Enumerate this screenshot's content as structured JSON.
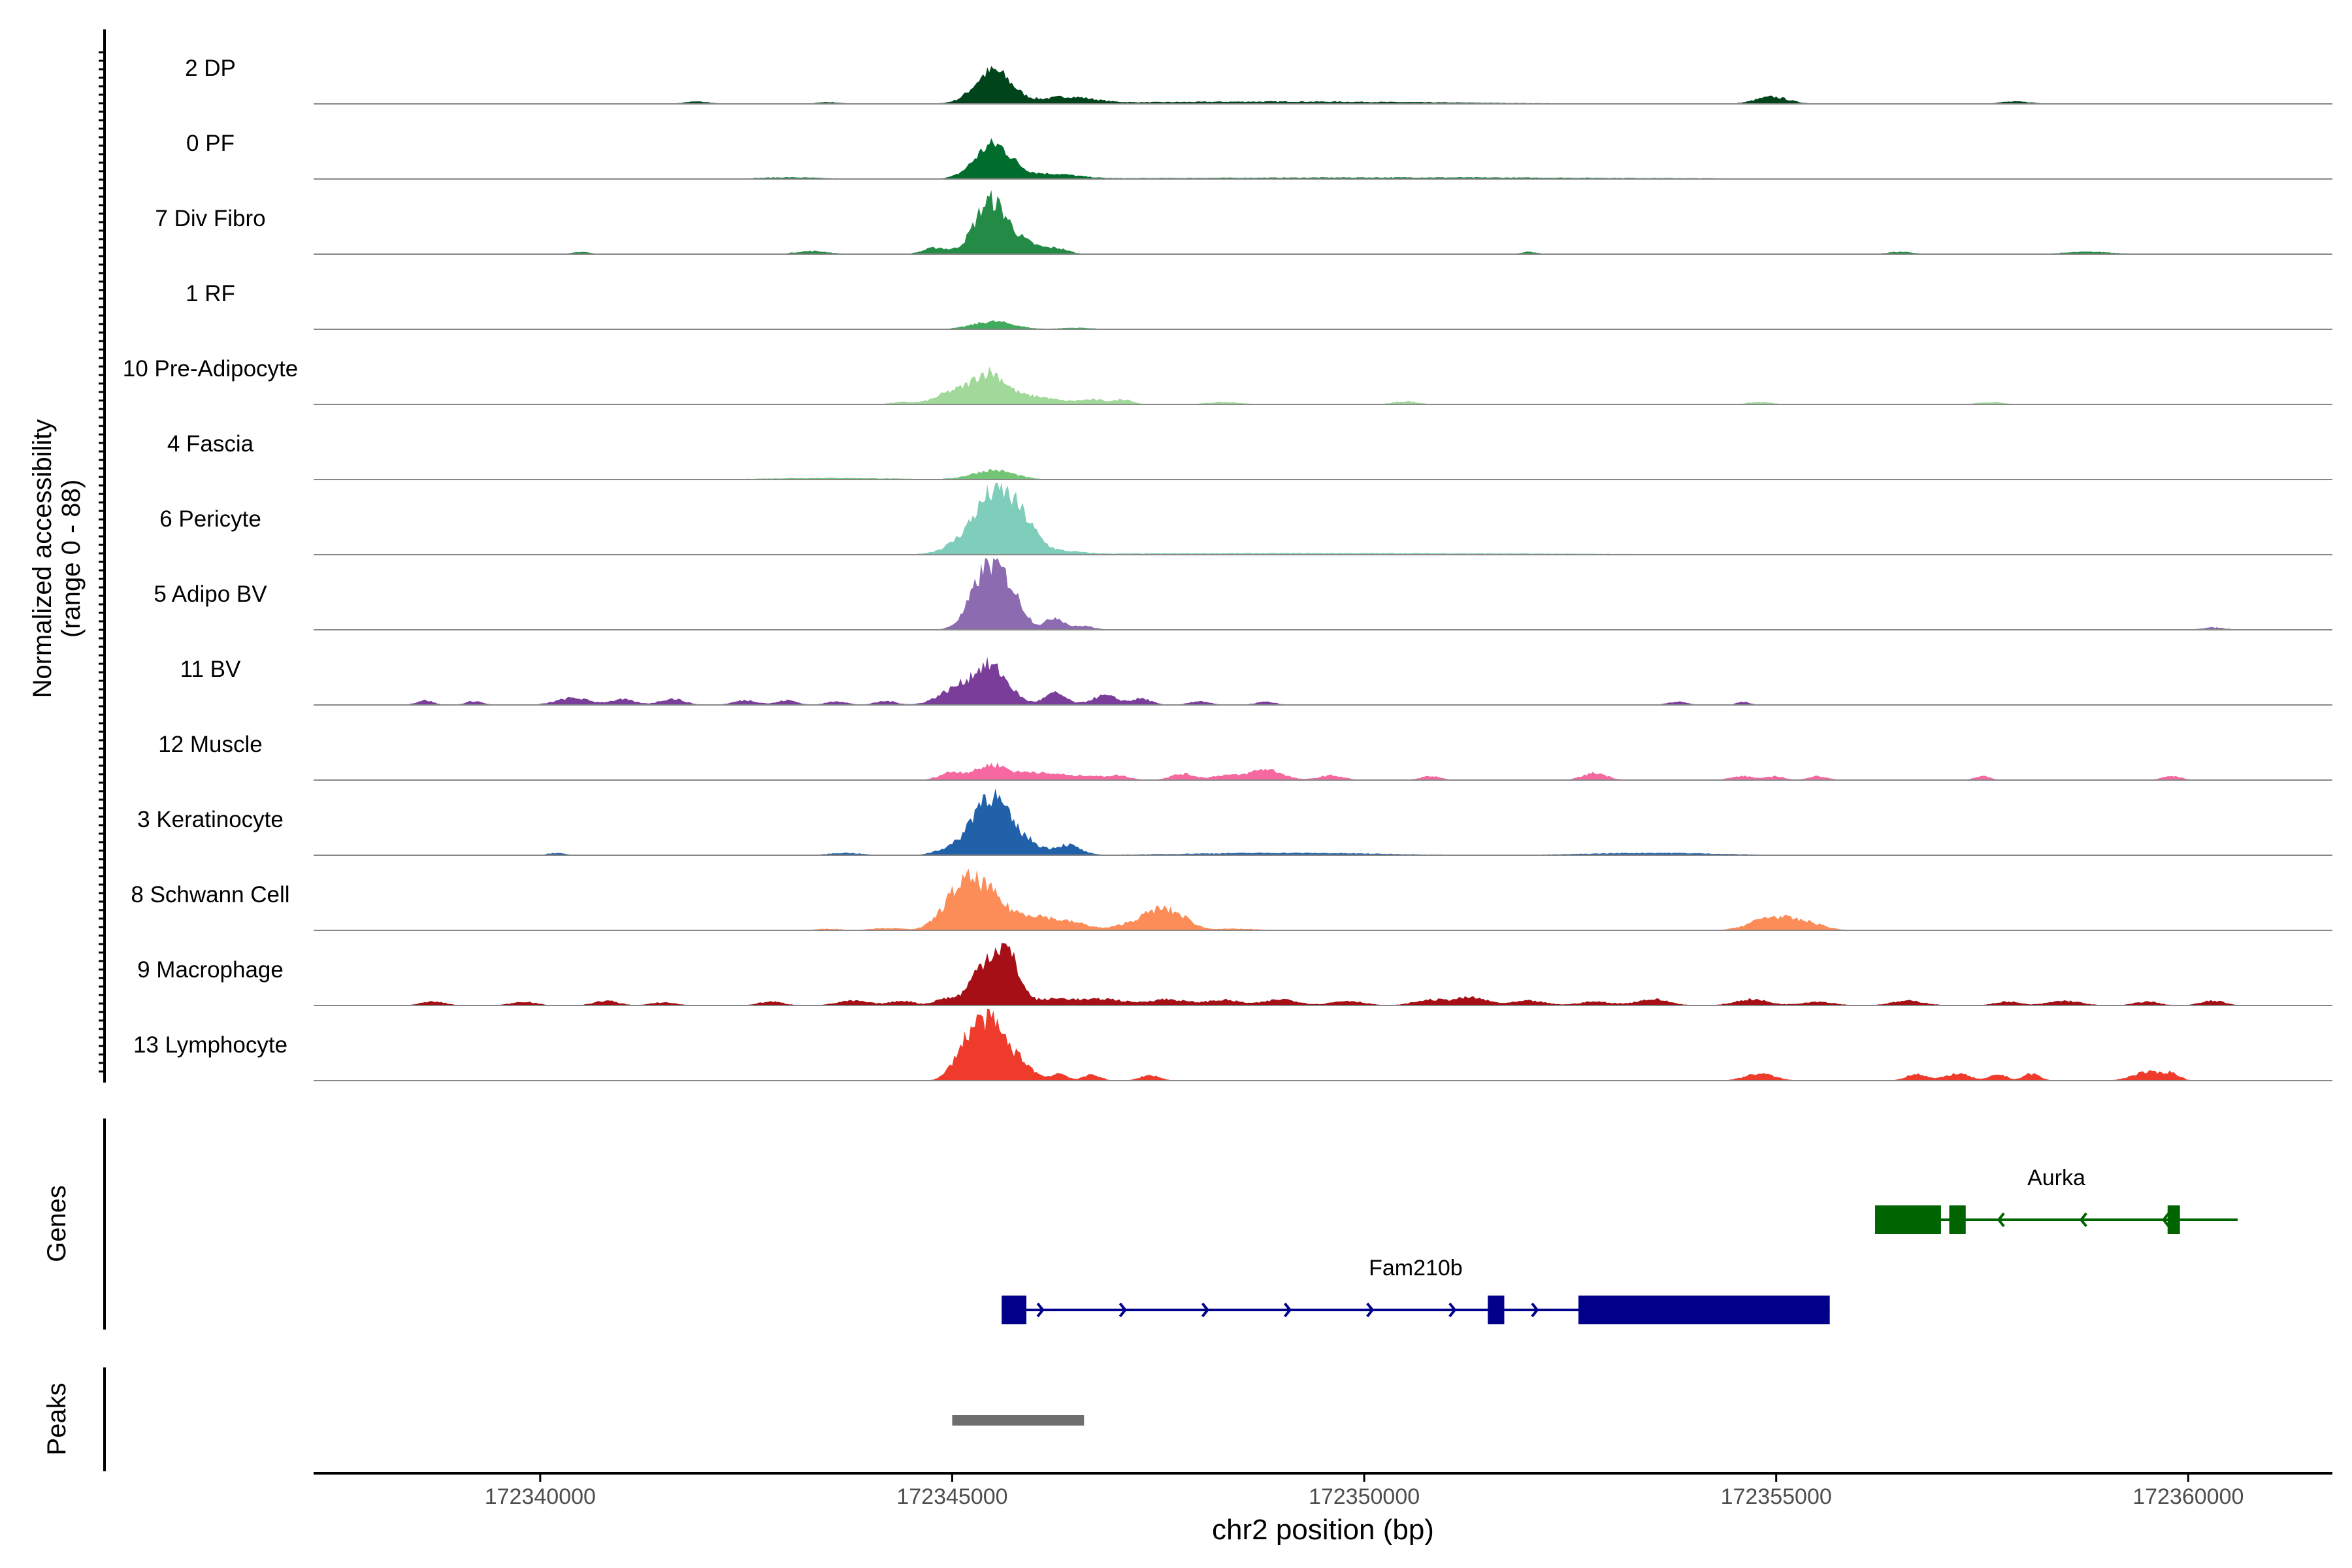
{
  "chart_data": {
    "type": "area",
    "title": "",
    "ylabel_line1": "Normalized accessibility",
    "ylabel_line2": "(range 0 - 88)",
    "y_range": [
      0,
      88
    ],
    "xlabel": "chr2 position (bp)",
    "xlim": [
      172337250,
      172361750
    ],
    "x_ticks": [
      172340000,
      172345000,
      172350000,
      172355000,
      172360000
    ],
    "x_tick_labels": [
      "172340000",
      "172345000",
      "172350000",
      "172355000",
      "172360000"
    ],
    "tracks": [
      {
        "name": "2 DP",
        "color": "#00441b",
        "peaks": [
          [
            172345500,
            42,
            220
          ],
          [
            172346400,
            8,
            300
          ],
          [
            172349000,
            3,
            2000
          ],
          [
            172354950,
            9,
            200
          ],
          [
            172341900,
            3,
            150
          ],
          [
            172357900,
            3,
            200
          ],
          [
            172343500,
            2,
            150
          ]
        ]
      },
      {
        "name": "0 PF",
        "color": "#006d2c",
        "peaks": [
          [
            172345500,
            44,
            220
          ],
          [
            172346200,
            6,
            300
          ],
          [
            172343000,
            2,
            400
          ],
          [
            172350500,
            2,
            3000
          ]
        ]
      },
      {
        "name": "7 Div Fibro",
        "color": "#238b45",
        "peaks": [
          [
            172345450,
            55,
            180
          ],
          [
            172345700,
            20,
            300
          ],
          [
            172344800,
            8,
            150
          ],
          [
            172346300,
            5,
            120
          ],
          [
            172343300,
            4,
            200
          ],
          [
            172352000,
            3,
            100
          ],
          [
            172340500,
            3,
            100
          ],
          [
            172356500,
            3,
            150
          ],
          [
            172358800,
            3,
            300
          ]
        ]
      },
      {
        "name": "1 RF",
        "color": "#41ab5d",
        "peaks": [
          [
            172345500,
            10,
            250
          ],
          [
            172346500,
            2,
            200
          ]
        ]
      },
      {
        "name": "10 Pre-Adipocyte",
        "color": "#a1d99b",
        "peaks": [
          [
            172345450,
            40,
            200
          ],
          [
            172345000,
            15,
            200
          ],
          [
            172346000,
            10,
            250
          ],
          [
            172346700,
            6,
            200
          ],
          [
            172347100,
            6,
            100
          ],
          [
            172348300,
            3,
            200
          ],
          [
            172350500,
            4,
            150
          ],
          [
            172354800,
            3,
            150
          ],
          [
            172357600,
            3,
            150
          ],
          [
            172344400,
            3,
            150
          ]
        ]
      },
      {
        "name": "4 Fascia",
        "color": "#74c476",
        "peaks": [
          [
            172345500,
            12,
            250
          ],
          [
            172343500,
            2,
            800
          ]
        ]
      },
      {
        "name": "6 Pericyte",
        "color": "#7fcdbb",
        "peaks": [
          [
            172345500,
            74,
            240
          ],
          [
            172345850,
            30,
            200
          ],
          [
            172345050,
            8,
            200
          ],
          [
            172346400,
            3,
            200
          ],
          [
            172349500,
            2,
            3000
          ]
        ]
      },
      {
        "name": "5 Adipo BV",
        "color": "#8c6bb1",
        "peaks": [
          [
            172345450,
            82,
            200
          ],
          [
            172345750,
            25,
            150
          ],
          [
            172346250,
            16,
            110
          ],
          [
            172346600,
            5,
            120
          ],
          [
            172360300,
            3,
            150
          ]
        ]
      },
      {
        "name": "11 BV",
        "color": "#7a3d9a",
        "peaks": [
          [
            172345450,
            50,
            220
          ],
          [
            172345000,
            16,
            200
          ],
          [
            172346250,
            15,
            130
          ],
          [
            172346850,
            12,
            160
          ],
          [
            172347300,
            8,
            120
          ],
          [
            172340400,
            9,
            200
          ],
          [
            172341000,
            7,
            150
          ],
          [
            172341600,
            8,
            150
          ],
          [
            172342500,
            6,
            150
          ],
          [
            172338600,
            6,
            100
          ],
          [
            172339200,
            5,
            100
          ],
          [
            172343000,
            6,
            120
          ],
          [
            172343600,
            5,
            120
          ],
          [
            172344200,
            5,
            130
          ],
          [
            172348000,
            5,
            120
          ],
          [
            172348800,
            4,
            120
          ],
          [
            172353800,
            4,
            120
          ],
          [
            172354600,
            4,
            80
          ]
        ]
      },
      {
        "name": "12 Muscle",
        "color": "#f768a1",
        "peaks": [
          [
            172345500,
            20,
            200
          ],
          [
            172345000,
            10,
            150
          ],
          [
            172346000,
            10,
            150
          ],
          [
            172346600,
            6,
            150
          ],
          [
            172347000,
            6,
            150
          ],
          [
            172347800,
            8,
            150
          ],
          [
            172348300,
            6,
            150
          ],
          [
            172348800,
            14,
            200
          ],
          [
            172349600,
            6,
            150
          ],
          [
            172350800,
            5,
            120
          ],
          [
            172352800,
            9,
            150
          ],
          [
            172354600,
            5,
            150
          ],
          [
            172355000,
            5,
            100
          ],
          [
            172355500,
            5,
            120
          ],
          [
            172357500,
            5,
            100
          ],
          [
            172359800,
            5,
            120
          ],
          [
            172346300,
            6,
            100
          ]
        ]
      },
      {
        "name": "3 Keratinocyte",
        "color": "#2161aa",
        "peaks": [
          [
            172345450,
            78,
            220
          ],
          [
            172345900,
            15,
            180
          ],
          [
            172346400,
            13,
            150
          ],
          [
            172344900,
            6,
            150
          ],
          [
            172340200,
            3,
            100
          ],
          [
            172343700,
            3,
            200
          ],
          [
            172349000,
            3,
            1200
          ],
          [
            172353500,
            3,
            800
          ]
        ]
      },
      {
        "name": "8 Schwann Cell",
        "color": "#fc8d59",
        "peaks": [
          [
            172345350,
            52,
            250
          ],
          [
            172345050,
            30,
            200
          ],
          [
            172346000,
            18,
            250
          ],
          [
            172346500,
            8,
            200
          ],
          [
            172347100,
            6,
            150
          ],
          [
            172347500,
            26,
            200
          ],
          [
            172347800,
            10,
            150
          ],
          [
            172354950,
            17,
            250
          ],
          [
            172355400,
            8,
            200
          ],
          [
            172344200,
            3,
            200
          ],
          [
            172343500,
            2,
            150
          ],
          [
            172348400,
            2,
            300
          ]
        ]
      },
      {
        "name": "9 Macrophage",
        "color": "#a50f15",
        "peaks": [
          [
            172345450,
            60,
            200
          ],
          [
            172345700,
            40,
            130
          ],
          [
            172346300,
            9,
            300
          ],
          [
            172346900,
            7,
            200
          ],
          [
            172347600,
            8,
            250
          ],
          [
            172348300,
            7,
            200
          ],
          [
            172349000,
            8,
            200
          ],
          [
            172349800,
            6,
            200
          ],
          [
            172350800,
            7,
            200
          ],
          [
            172351300,
            10,
            200
          ],
          [
            172352000,
            6,
            200
          ],
          [
            172352800,
            5,
            200
          ],
          [
            172353500,
            8,
            200
          ],
          [
            172354700,
            8,
            200
          ],
          [
            172355500,
            5,
            200
          ],
          [
            172356600,
            6,
            200
          ],
          [
            172357800,
            5,
            150
          ],
          [
            172358500,
            6,
            200
          ],
          [
            172359500,
            5,
            150
          ],
          [
            172360300,
            6,
            150
          ],
          [
            172338700,
            5,
            150
          ],
          [
            172339800,
            5,
            150
          ],
          [
            172340800,
            6,
            150
          ],
          [
            172341500,
            4,
            150
          ],
          [
            172342800,
            5,
            150
          ],
          [
            172343800,
            6,
            200
          ],
          [
            172344400,
            6,
            150
          ],
          [
            172344900,
            8,
            120
          ]
        ]
      },
      {
        "name": "13 Lymphocyte",
        "color": "#ef3b2c",
        "peaks": [
          [
            172345450,
            75,
            200
          ],
          [
            172345150,
            30,
            150
          ],
          [
            172345850,
            18,
            150
          ],
          [
            172346300,
            9,
            100
          ],
          [
            172346700,
            8,
            100
          ],
          [
            172347400,
            7,
            120
          ],
          [
            172354800,
            9,
            180
          ],
          [
            172356700,
            9,
            120
          ],
          [
            172357200,
            9,
            150
          ],
          [
            172357700,
            8,
            100
          ],
          [
            172358100,
            9,
            100
          ],
          [
            172359500,
            11,
            180
          ],
          [
            172359800,
            8,
            100
          ]
        ]
      }
    ],
    "genes_label": "Genes",
    "peaks_label": "Peaks",
    "genes": [
      {
        "name": "Aurka",
        "strand": "-",
        "color": "#006400",
        "start": 172356200,
        "end": 172360600,
        "exons": [
          [
            172356200,
            172357000
          ],
          [
            172357100,
            172357300
          ],
          [
            172359750,
            172359900
          ]
        ]
      },
      {
        "name": "Fam210b",
        "strand": "+",
        "color": "#00008b",
        "start": 172345600,
        "end": 172355650,
        "exons": [
          [
            172345600,
            172345900
          ],
          [
            172351500,
            172351700
          ],
          [
            172352600,
            172355650
          ]
        ]
      }
    ],
    "peak_regions": [
      [
        172345000,
        172346600
      ]
    ],
    "peak_region_color": "#6e6e6e"
  }
}
